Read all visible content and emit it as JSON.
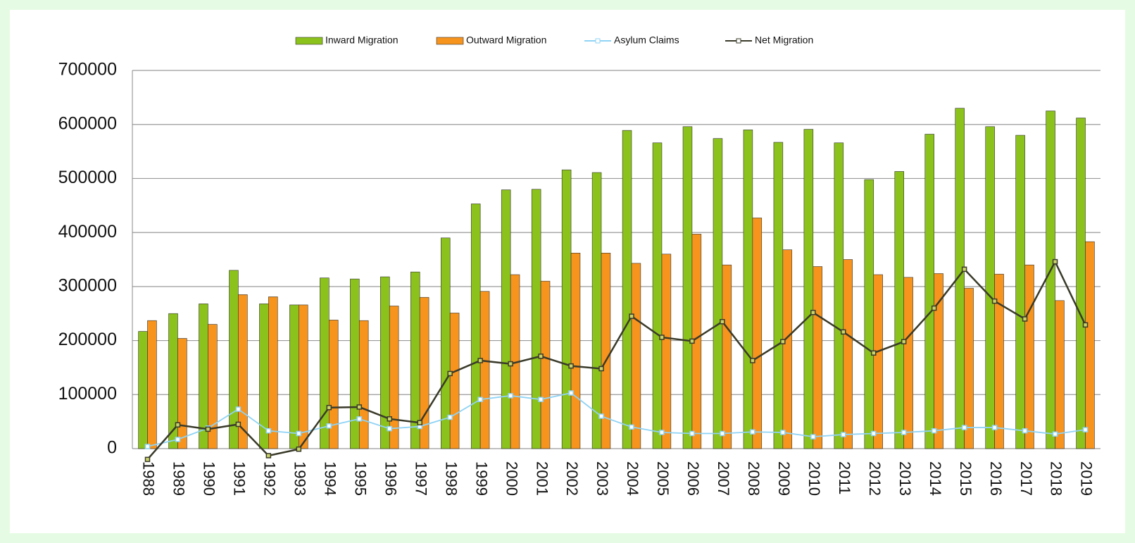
{
  "chart_data": {
    "type": "bar",
    "categories": [
      "1988",
      "1989",
      "1990",
      "1991",
      "1992",
      "1993",
      "1994",
      "1995",
      "1996",
      "1997",
      "1998",
      "1999",
      "2000",
      "2001",
      "2002",
      "2003",
      "2004",
      "2005",
      "2006",
      "2007",
      "2008",
      "2009",
      "2010",
      "2011",
      "2012",
      "2013",
      "2014",
      "2015",
      "2016",
      "2017",
      "2018",
      "2019"
    ],
    "series": [
      {
        "name": "Inward Migration",
        "type": "bar",
        "color": "#8cc21c",
        "values": [
          217000,
          250000,
          268000,
          330000,
          268000,
          266000,
          316000,
          314000,
          318000,
          327000,
          390000,
          453000,
          479000,
          480000,
          516000,
          511000,
          589000,
          566000,
          596000,
          574000,
          590000,
          567000,
          591000,
          566000,
          498000,
          513000,
          582000,
          630000,
          596000,
          580000,
          625000,
          612000
        ]
      },
      {
        "name": "Outward Migration",
        "type": "bar",
        "color": "#f7941d",
        "values": [
          237000,
          204000,
          230000,
          285000,
          281000,
          266000,
          238000,
          237000,
          264000,
          280000,
          251000,
          291000,
          322000,
          310000,
          362000,
          362000,
          343000,
          360000,
          397000,
          340000,
          427000,
          368000,
          337000,
          350000,
          322000,
          317000,
          324000,
          297000,
          323000,
          340000,
          274000,
          383000
        ]
      },
      {
        "name": "Asylum Claims",
        "type": "line",
        "color": "#8fd3f5",
        "values": [
          4000,
          17000,
          38000,
          73000,
          33000,
          28000,
          42000,
          55000,
          37000,
          41000,
          58000,
          91000,
          98000,
          91000,
          103000,
          60000,
          40000,
          30000,
          28000,
          28000,
          31000,
          30000,
          22000,
          26000,
          28000,
          30000,
          33000,
          39000,
          39000,
          33000,
          27000,
          35000
        ]
      },
      {
        "name": "Net Migration",
        "type": "line",
        "color": "#3a3a2a",
        "values": [
          -20000,
          44000,
          36000,
          45000,
          -13000,
          -1000,
          76000,
          77000,
          55000,
          48000,
          139000,
          163000,
          157000,
          171000,
          153000,
          148000,
          245000,
          206000,
          199000,
          235000,
          163000,
          198000,
          252000,
          216000,
          177000,
          198000,
          260000,
          332000,
          273000,
          240000,
          346000,
          229000
        ]
      }
    ],
    "ylim": [
      0,
      700000
    ],
    "yticks": [
      0,
      100000,
      200000,
      300000,
      400000,
      500000,
      600000,
      700000
    ],
    "grid": true,
    "legend": "top"
  }
}
